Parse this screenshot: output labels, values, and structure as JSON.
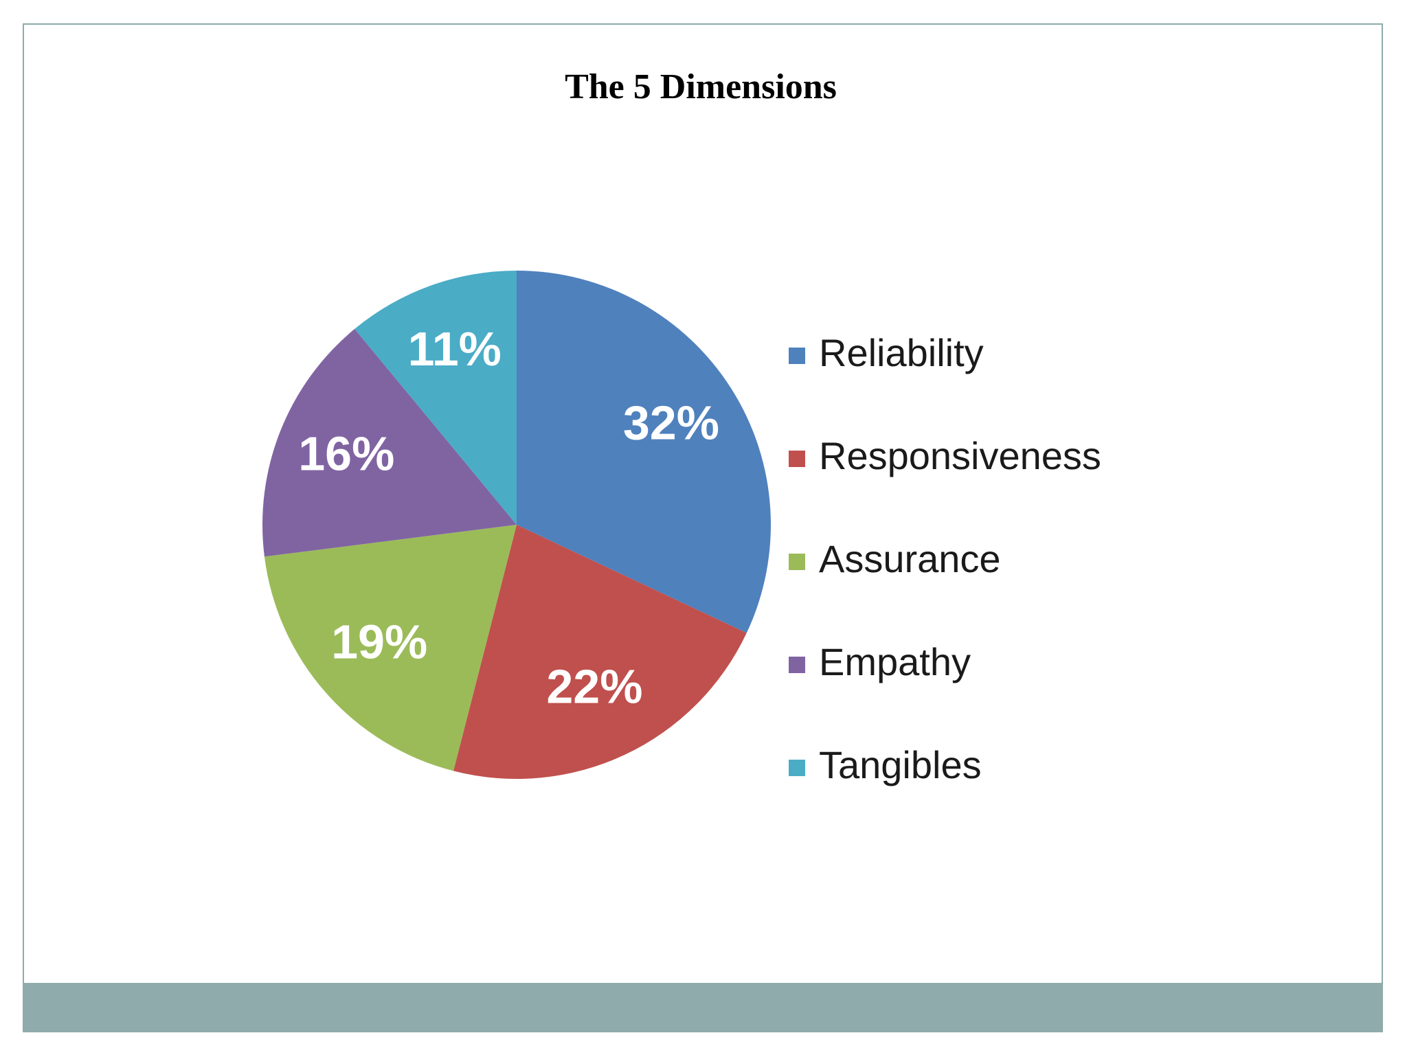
{
  "chart_data": {
    "type": "pie",
    "title": "The 5 Dimensions",
    "categories": [
      "Reliability",
      "Responsiveness",
      "Assurance",
      "Empathy",
      "Tangibles"
    ],
    "values": [
      32,
      22,
      19,
      16,
      11
    ],
    "value_labels": [
      "32%",
      "22%",
      "19%",
      "16%",
      "11%"
    ],
    "colors": [
      "#4f81bd",
      "#c0504d",
      "#9bbb59",
      "#8064a2",
      "#4bacc6"
    ],
    "legend": "right"
  }
}
